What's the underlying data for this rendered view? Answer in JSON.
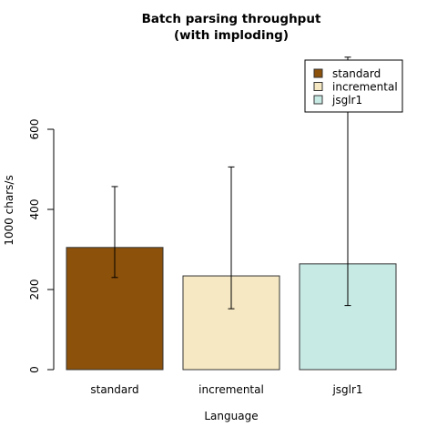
{
  "chart_data": {
    "type": "bar",
    "title": "Batch parsing throughput",
    "subtitle": "(with imploding)",
    "xlabel": "Language",
    "ylabel": "1000 chars/s",
    "categories": [
      "standard",
      "incremental",
      "jsglr1"
    ],
    "values": [
      305,
      234,
      264
    ],
    "error_low": [
      230,
      152,
      160
    ],
    "error_high": [
      457,
      506,
      780
    ],
    "colors": [
      "#8c510a",
      "#f6e8c3",
      "#c7eae5"
    ],
    "ylim": [
      0,
      800
    ],
    "yticks": [
      0,
      200,
      400,
      600
    ],
    "yticks_labels": [
      "0",
      "200",
      "400",
      "600"
    ],
    "grid": false,
    "legend": {
      "position": "top-right",
      "entries": [
        "standard",
        "incremental",
        "jsglr1"
      ]
    }
  }
}
